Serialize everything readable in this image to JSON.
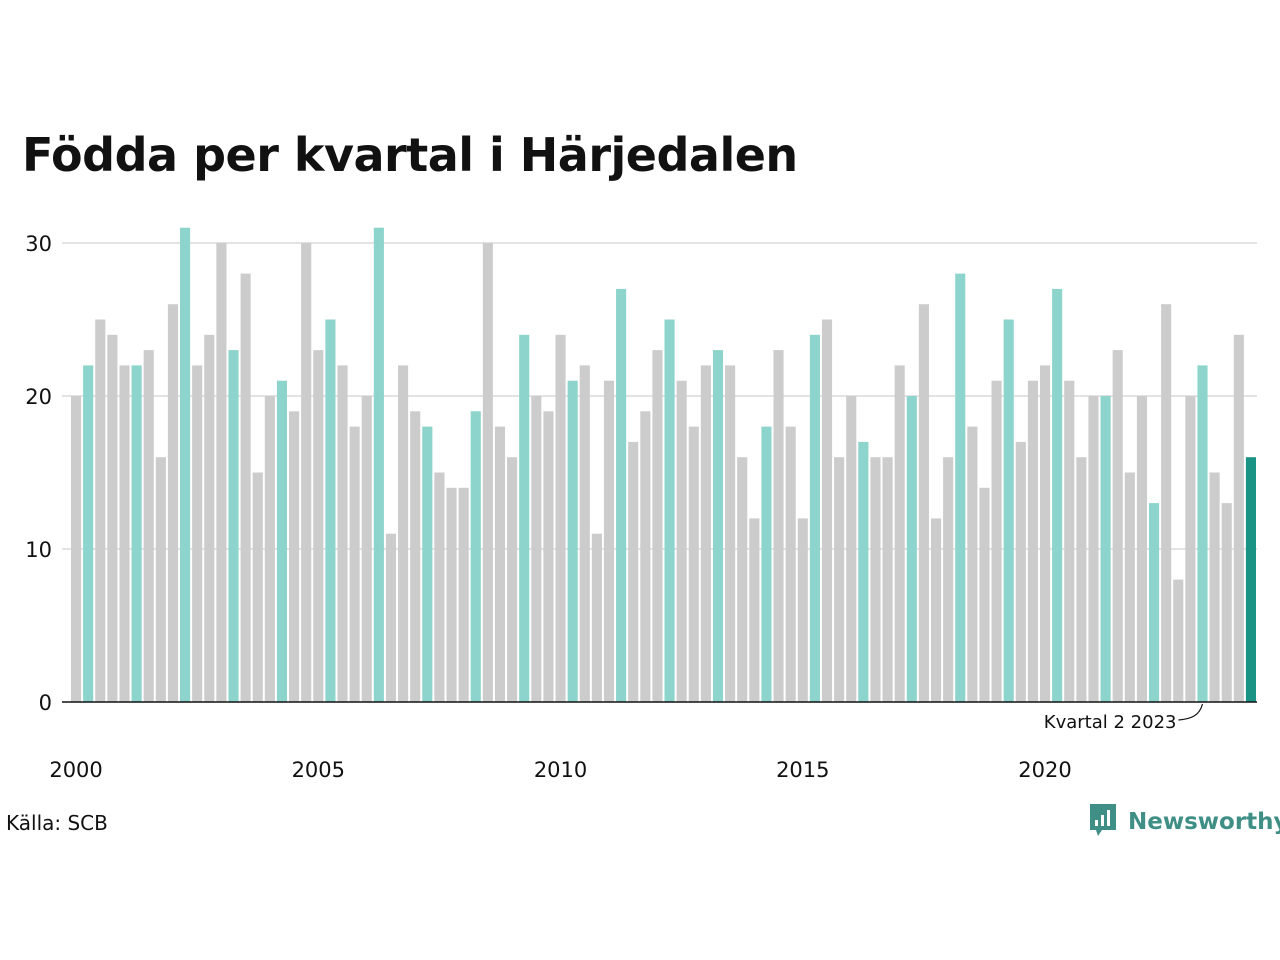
{
  "chart_data": {
    "type": "bar",
    "title": "Födda per kvartal i Härjedalen",
    "xlabel": "",
    "ylabel": "",
    "ylim": [
      0,
      31
    ],
    "yticks": [
      0,
      10,
      20,
      30
    ],
    "xtick_labels": [
      "2000",
      "2005",
      "2010",
      "2015",
      "2020"
    ],
    "grid": true,
    "categories": [
      "2000 K1",
      "2000 K2",
      "2000 K3",
      "2000 K4",
      "2001 K1",
      "2001 K2",
      "2001 K3",
      "2001 K4",
      "2002 K1",
      "2002 K2",
      "2002 K3",
      "2002 K4",
      "2003 K1",
      "2003 K2",
      "2003 K3",
      "2003 K4",
      "2004 K1",
      "2004 K2",
      "2004 K3",
      "2004 K4",
      "2005 K1",
      "2005 K2",
      "2005 K3",
      "2005 K4",
      "2006 K1",
      "2006 K2",
      "2006 K3",
      "2006 K4",
      "2007 K1",
      "2007 K2",
      "2007 K3",
      "2007 K4",
      "2008 K1",
      "2008 K2",
      "2008 K3",
      "2008 K4",
      "2009 K1",
      "2009 K2",
      "2009 K3",
      "2009 K4",
      "2010 K1",
      "2010 K2",
      "2010 K3",
      "2010 K4",
      "2011 K1",
      "2011 K2",
      "2011 K3",
      "2011 K4",
      "2012 K1",
      "2012 K2",
      "2012 K3",
      "2012 K4",
      "2013 K1",
      "2013 K2",
      "2013 K3",
      "2013 K4",
      "2014 K1",
      "2014 K2",
      "2014 K3",
      "2014 K4",
      "2015 K1",
      "2015 K2",
      "2015 K3",
      "2015 K4",
      "2016 K1",
      "2016 K2",
      "2016 K3",
      "2016 K4",
      "2017 K1",
      "2017 K2",
      "2017 K3",
      "2017 K4",
      "2018 K1",
      "2018 K2",
      "2018 K3",
      "2018 K4",
      "2019 K1",
      "2019 K2",
      "2019 K3",
      "2019 K4",
      "2020 K1",
      "2020 K2",
      "2020 K3",
      "2020 K4",
      "2021 K1",
      "2021 K2",
      "2021 K3",
      "2021 K4",
      "2022 K1",
      "2022 K2",
      "2022 K3",
      "2022 K4",
      "2023 K1",
      "2023 K2",
      "2023 K3",
      "2023 K4",
      "2024 K1",
      "2024 K2"
    ],
    "values": [
      20,
      22,
      25,
      24,
      22,
      22,
      23,
      16,
      26,
      31,
      22,
      24,
      30,
      23,
      28,
      15,
      20,
      21,
      19,
      30,
      23,
      25,
      22,
      18,
      20,
      31,
      11,
      22,
      19,
      18,
      15,
      14,
      14,
      19,
      30,
      18,
      16,
      24,
      20,
      19,
      24,
      21,
      22,
      11,
      21,
      27,
      17,
      19,
      23,
      25,
      21,
      18,
      22,
      23,
      22,
      16,
      12,
      18,
      23,
      18,
      12,
      24,
      25,
      16,
      20,
      17,
      16,
      16,
      22,
      20,
      26,
      12,
      16,
      28,
      18,
      14,
      21,
      25,
      17,
      21,
      22,
      27,
      21,
      16,
      20,
      20,
      23,
      15,
      20,
      13,
      26,
      8,
      20,
      22,
      15,
      13,
      24,
      16
    ],
    "highlight_quarter": 2,
    "colors": {
      "other_quarters": "#cccccc",
      "highlight_quarter": "#8dd4cc",
      "latest": "#1a9384",
      "gridline": "#e3e3e3",
      "axis": "#111111"
    },
    "annotation": "Kvartal 2 2023"
  },
  "source": "Källa: SCB",
  "brand": {
    "name": "Newsworthy",
    "logo_icon": "newsworthy-bar-chart-icon",
    "color": "#3f8f86"
  }
}
